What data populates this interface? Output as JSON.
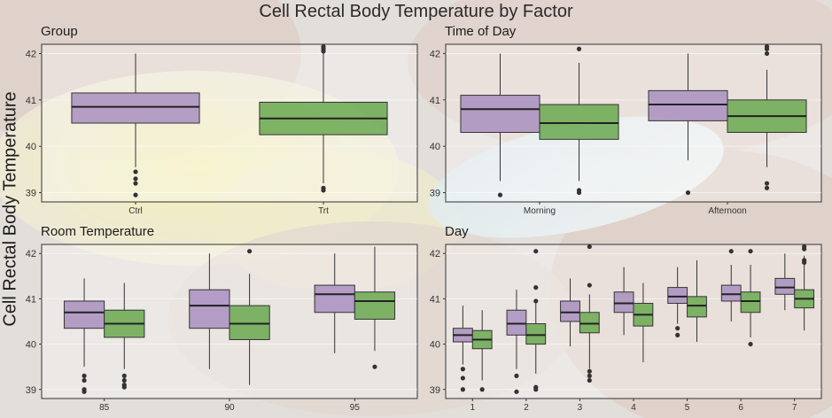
{
  "title": "Cell Rectal Body Temperature by Factor",
  "ylabel": "Cell Rectal Body Temperature",
  "colors": {
    "purple": "#a98fc0",
    "green": "#6aa84f"
  },
  "chart_data": [
    {
      "type": "box",
      "title": "Group",
      "categories": [
        "Ctrl",
        "Trt"
      ],
      "ylim": [
        38.8,
        42.2
      ],
      "yticks": [
        39,
        40,
        41,
        42
      ],
      "series": [
        {
          "color": "purple",
          "boxes": [
            {
              "category": "Ctrl",
              "q1": 40.5,
              "median": 40.85,
              "q3": 41.15,
              "whisker_low": 39.55,
              "whisker_high": 42.0,
              "outliers": [
                39.45,
                39.3,
                39.2,
                38.95
              ]
            }
          ]
        },
        {
          "color": "green",
          "boxes": [
            {
              "category": "Trt",
              "q1": 40.25,
              "median": 40.6,
              "q3": 40.95,
              "whisker_low": 39.2,
              "whisker_high": 42.0,
              "outliers": [
                42.15,
                42.1,
                42.05,
                39.1,
                39.05
              ]
            }
          ]
        }
      ]
    },
    {
      "type": "box",
      "title": "Time of Day",
      "categories": [
        "Morning",
        "Afternoon"
      ],
      "ylim": [
        38.8,
        42.2
      ],
      "yticks": [
        39,
        40,
        41,
        42
      ],
      "series": [
        {
          "color": "purple",
          "boxes": [
            {
              "category": "Morning",
              "q1": 40.3,
              "median": 40.8,
              "q3": 41.1,
              "whisker_low": 39.25,
              "whisker_high": 42.0,
              "outliers": [
                38.95
              ]
            },
            {
              "category": "Afternoon",
              "q1": 40.55,
              "median": 40.9,
              "q3": 41.2,
              "whisker_low": 39.7,
              "whisker_high": 42.0,
              "outliers": [
                39.0
              ]
            }
          ]
        },
        {
          "color": "green",
          "boxes": [
            {
              "category": "Morning",
              "q1": 40.15,
              "median": 40.5,
              "q3": 40.9,
              "whisker_low": 39.25,
              "whisker_high": 41.8,
              "outliers": [
                42.1,
                39.05,
                39.0
              ]
            },
            {
              "category": "Afternoon",
              "q1": 40.3,
              "median": 40.65,
              "q3": 41.0,
              "whisker_low": 39.55,
              "whisker_high": 41.65,
              "outliers": [
                42.15,
                42.1,
                42.0,
                39.2,
                39.1
              ]
            }
          ]
        }
      ]
    },
    {
      "type": "box",
      "title": "Room Temperature",
      "categories": [
        "85",
        "90",
        "95"
      ],
      "ylim": [
        38.8,
        42.2
      ],
      "yticks": [
        39,
        40,
        41,
        42
      ],
      "series": [
        {
          "color": "purple",
          "boxes": [
            {
              "category": "85",
              "q1": 40.35,
              "median": 40.7,
              "q3": 40.95,
              "whisker_low": 39.5,
              "whisker_high": 41.45,
              "outliers": [
                39.3,
                39.2,
                39.0,
                38.95
              ]
            },
            {
              "category": "90",
              "q1": 40.35,
              "median": 40.85,
              "q3": 41.2,
              "whisker_low": 39.45,
              "whisker_high": 42.0
            },
            {
              "category": "95",
              "q1": 40.7,
              "median": 41.1,
              "q3": 41.3,
              "whisker_low": 39.8,
              "whisker_high": 42.0
            }
          ]
        },
        {
          "color": "green",
          "boxes": [
            {
              "category": "85",
              "q1": 40.15,
              "median": 40.45,
              "q3": 40.75,
              "whisker_low": 39.45,
              "whisker_high": 41.35,
              "outliers": [
                39.3,
                39.2,
                39.1,
                39.05
              ]
            },
            {
              "category": "90",
              "q1": 40.1,
              "median": 40.45,
              "q3": 40.85,
              "whisker_low": 39.1,
              "whisker_high": 41.55,
              "outliers": [
                42.05
              ]
            },
            {
              "category": "95",
              "q1": 40.55,
              "median": 40.95,
              "q3": 41.15,
              "whisker_low": 39.85,
              "whisker_high": 42.15,
              "outliers": [
                39.5
              ]
            }
          ]
        }
      ]
    },
    {
      "type": "box",
      "title": "Day",
      "categories": [
        "1",
        "2",
        "3",
        "4",
        "5",
        "6",
        "7"
      ],
      "ylim": [
        38.8,
        42.2
      ],
      "yticks": [
        39,
        40,
        41,
        42
      ],
      "series": [
        {
          "color": "purple",
          "boxes": [
            {
              "category": "1",
              "q1": 40.05,
              "median": 40.2,
              "q3": 40.35,
              "whisker_low": 39.55,
              "whisker_high": 40.85,
              "outliers": [
                39.45,
                39.25,
                39.0
              ]
            },
            {
              "category": "2",
              "q1": 40.2,
              "median": 40.45,
              "q3": 40.75,
              "whisker_low": 39.45,
              "whisker_high": 41.2,
              "outliers": [
                39.3,
                38.95
              ]
            },
            {
              "category": "3",
              "q1": 40.5,
              "median": 40.7,
              "q3": 40.95,
              "whisker_low": 39.95,
              "whisker_high": 41.45
            },
            {
              "category": "4",
              "q1": 40.7,
              "median": 40.9,
              "q3": 41.15,
              "whisker_low": 40.2,
              "whisker_high": 41.7
            },
            {
              "category": "5",
              "q1": 40.9,
              "median": 41.05,
              "q3": 41.25,
              "whisker_low": 40.45,
              "whisker_high": 41.7,
              "outliers": [
                40.35,
                40.2
              ]
            },
            {
              "category": "6",
              "q1": 40.95,
              "median": 41.1,
              "q3": 41.3,
              "whisker_low": 40.5,
              "whisker_high": 41.75,
              "outliers": [
                42.05
              ]
            },
            {
              "category": "7",
              "q1": 41.1,
              "median": 41.25,
              "q3": 41.45,
              "whisker_low": 40.75,
              "whisker_high": 42.0
            }
          ]
        },
        {
          "color": "green",
          "boxes": [
            {
              "category": "1",
              "q1": 39.9,
              "median": 40.1,
              "q3": 40.3,
              "whisker_low": 39.2,
              "whisker_high": 40.75,
              "outliers": [
                39.0
              ]
            },
            {
              "category": "2",
              "q1": 40.0,
              "median": 40.2,
              "q3": 40.45,
              "whisker_low": 39.35,
              "whisker_high": 40.9,
              "outliers": [
                42.05,
                41.25,
                40.95,
                39.05,
                39.0
              ]
            },
            {
              "category": "3",
              "q1": 40.25,
              "median": 40.45,
              "q3": 40.7,
              "whisker_low": 39.45,
              "whisker_high": 41.1,
              "outliers": [
                42.15,
                41.3,
                39.4,
                39.3,
                39.2
              ]
            },
            {
              "category": "4",
              "q1": 40.4,
              "median": 40.65,
              "q3": 40.9,
              "whisker_low": 39.6,
              "whisker_high": 41.35
            },
            {
              "category": "5",
              "q1": 40.6,
              "median": 40.85,
              "q3": 41.05,
              "whisker_low": 40.05,
              "whisker_high": 41.85
            },
            {
              "category": "6",
              "q1": 40.7,
              "median": 40.95,
              "q3": 41.15,
              "whisker_low": 40.15,
              "whisker_high": 41.75,
              "outliers": [
                42.05,
                40.0
              ]
            },
            {
              "category": "7",
              "q1": 40.8,
              "median": 41.0,
              "q3": 41.2,
              "whisker_low": 40.3,
              "whisker_high": 41.95,
              "outliers": [
                42.15,
                42.1,
                41.85,
                41.8
              ]
            }
          ]
        }
      ]
    }
  ]
}
